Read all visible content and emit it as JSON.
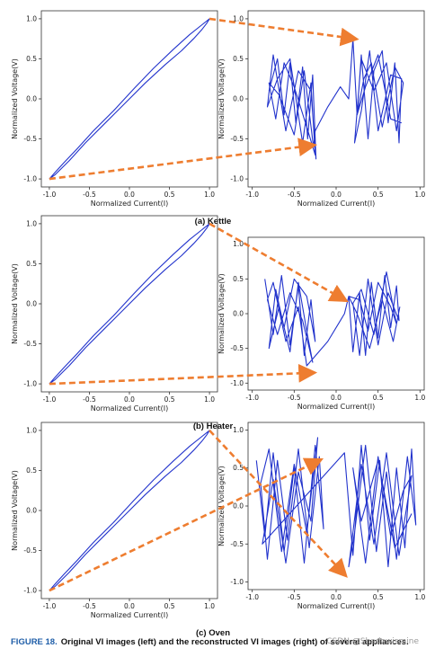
{
  "figure": {
    "label": "FIGURE 18.",
    "caption": "Original VI images (left) and the reconstructed VI images (right) of several appliances."
  },
  "watermark": "CSDN @Shadowismine",
  "colors": {
    "line": "#2233cc",
    "arrow": "#ee7d30",
    "axis": "#333333"
  },
  "chart_data": [
    {
      "type": "line",
      "panel": "kettle-left",
      "subcaption": "(a) Kettle",
      "xlabel": "Normalized Current(I)",
      "ylabel": "Normalized Voltage(V)",
      "xlim": [
        -1.1,
        1.1
      ],
      "ylim": [
        -1.1,
        1.1
      ],
      "xticks": [
        -1.0,
        -0.5,
        0.0,
        0.5,
        1.0
      ],
      "yticks": [
        -1.0,
        -0.5,
        0.0,
        0.5,
        1.0
      ],
      "series": [
        {
          "x": [
            -1.0,
            -0.93,
            -0.75,
            -0.55,
            -0.3,
            -0.05,
            0.2,
            0.45,
            0.65,
            0.8,
            0.9,
            0.97,
            1.0,
            0.9,
            0.75,
            0.55,
            0.3,
            0.05,
            -0.2,
            -0.45,
            -0.65,
            -0.82,
            -0.93,
            -1.0
          ],
          "y": [
            -1.0,
            -0.95,
            -0.77,
            -0.55,
            -0.3,
            -0.05,
            0.2,
            0.43,
            0.6,
            0.75,
            0.86,
            0.95,
            1.0,
            0.92,
            0.8,
            0.62,
            0.38,
            0.12,
            -0.15,
            -0.4,
            -0.62,
            -0.8,
            -0.92,
            -1.0
          ]
        }
      ]
    },
    {
      "type": "line",
      "panel": "kettle-right",
      "xlabel": "Normalized Current(I)",
      "ylabel": "Normalized Voltage(V)",
      "xlim": [
        -1.05,
        1.05
      ],
      "ylim": [
        -1.1,
        1.1
      ],
      "xticks": [
        -1.0,
        -0.5,
        0.0,
        0.5,
        1.0
      ],
      "yticks": [
        -1.0,
        -0.5,
        0.0,
        0.5,
        1.0
      ],
      "series": [
        {
          "x": [
            -0.8,
            -0.7,
            -0.62,
            -0.55,
            -0.48,
            -0.4,
            -0.34,
            -0.28,
            -0.24,
            -0.3,
            -0.45,
            -0.6,
            -0.75,
            -0.82,
            -0.7,
            -0.55,
            -0.4,
            -0.3,
            -0.25,
            -0.35,
            -0.5,
            -0.62,
            -0.72,
            -0.8,
            -0.68,
            -0.5,
            -0.38,
            -0.27,
            -0.25,
            -0.1,
            0.05,
            0.15,
            0.2,
            0.25,
            0.3,
            0.38,
            0.45,
            0.55,
            0.62,
            0.7,
            0.75,
            0.78,
            0.65,
            0.5,
            0.4,
            0.3,
            0.22,
            0.3,
            0.45,
            0.6,
            0.72,
            0.8,
            0.7,
            0.55,
            0.42,
            0.33,
            0.25,
            0.35,
            0.5,
            0.65,
            0.78
          ],
          "y": [
            0.1,
            0.5,
            -0.2,
            0.45,
            -0.3,
            0.4,
            -0.5,
            0.3,
            -0.75,
            0.1,
            0.35,
            -0.4,
            0.55,
            -0.1,
            0.25,
            0.5,
            -0.55,
            0.2,
            -0.7,
            -0.35,
            0.15,
            0.45,
            -0.25,
            0.2,
            0.05,
            -0.45,
            0.35,
            -0.6,
            -0.4,
            -0.1,
            0.15,
            0.0,
            0.75,
            -0.2,
            0.55,
            -0.5,
            0.35,
            0.6,
            -0.3,
            0.45,
            -0.55,
            0.25,
            0.3,
            -0.4,
            0.6,
            -0.15,
            -0.55,
            0.5,
            0.1,
            0.45,
            -0.4,
            0.2,
            0.4,
            -0.35,
            0.45,
            0.25,
            -0.2,
            0.15,
            0.55,
            -0.25,
            -0.3
          ]
        }
      ]
    },
    {
      "type": "line",
      "panel": "heater-left",
      "subcaption": "(b) Heater",
      "xlabel": "Normalized Current(I)",
      "ylabel": "Normalized Voltage(V)",
      "xlim": [
        -1.1,
        1.1
      ],
      "ylim": [
        -1.1,
        1.1
      ],
      "xticks": [
        -1.0,
        -0.5,
        0.0,
        0.5,
        1.0
      ],
      "yticks": [
        -1.0,
        -0.5,
        0.0,
        0.5,
        1.0
      ],
      "series": [
        {
          "x": [
            -1.0,
            -0.93,
            -0.75,
            -0.55,
            -0.3,
            -0.05,
            0.2,
            0.45,
            0.65,
            0.8,
            0.9,
            0.97,
            1.0,
            0.9,
            0.75,
            0.55,
            0.3,
            0.05,
            -0.2,
            -0.45,
            -0.65,
            -0.82,
            -0.93,
            -1.0
          ],
          "y": [
            -1.0,
            -0.95,
            -0.77,
            -0.55,
            -0.3,
            -0.05,
            0.2,
            0.43,
            0.6,
            0.75,
            0.86,
            0.95,
            1.0,
            0.92,
            0.8,
            0.62,
            0.38,
            0.12,
            -0.15,
            -0.4,
            -0.62,
            -0.8,
            -0.92,
            -1.0
          ]
        }
      ]
    },
    {
      "type": "line",
      "panel": "heater-right",
      "xlabel": "Normalized Current(I)",
      "ylabel": "Normalized Voltage(V)",
      "xlim": [
        -1.05,
        1.05
      ],
      "ylim": [
        -1.1,
        1.1
      ],
      "xticks": [
        -1.0,
        -0.5,
        0.0,
        0.5,
        1.0
      ],
      "yticks": [
        -1.0,
        -0.5,
        0.0,
        0.5,
        1.0
      ],
      "series": [
        {
          "x": [
            -0.85,
            -0.75,
            -0.65,
            -0.55,
            -0.45,
            -0.38,
            -0.3,
            -0.25,
            -0.35,
            -0.5,
            -0.62,
            -0.72,
            -0.8,
            -0.68,
            -0.55,
            -0.45,
            -0.35,
            -0.28,
            -0.4,
            -0.55,
            -0.7,
            -0.82,
            -0.75,
            -0.6,
            -0.45,
            -0.35,
            -0.1,
            0.05,
            0.1,
            0.15,
            0.2,
            0.28,
            0.35,
            0.42,
            0.5,
            0.58,
            0.65,
            0.72,
            0.75,
            0.62,
            0.5,
            0.38,
            0.28,
            0.2,
            0.3,
            0.45,
            0.6,
            0.72,
            0.65,
            0.5,
            0.38,
            0.28,
            0.15,
            0.25,
            0.4,
            0.55,
            0.68,
            0.76
          ],
          "y": [
            0.5,
            -0.3,
            0.55,
            -0.45,
            0.4,
            -0.6,
            0.2,
            -0.4,
            0.25,
            0.5,
            -0.2,
            0.35,
            -0.5,
            0.1,
            -0.55,
            0.45,
            -0.25,
            -0.7,
            -0.1,
            0.3,
            -0.3,
            0.2,
            0.45,
            -0.4,
            0.1,
            -0.75,
            -0.4,
            -0.1,
            0.0,
            0.25,
            -0.55,
            0.3,
            -0.6,
            0.45,
            -0.35,
            0.55,
            -0.2,
            0.4,
            -0.1,
            0.3,
            -0.45,
            0.5,
            -0.6,
            0.15,
            0.35,
            -0.3,
            0.6,
            -0.15,
            0.1,
            0.45,
            -0.25,
            0.2,
            0.25,
            0.0,
            -0.5,
            0.2,
            -0.4,
            0.1
          ]
        }
      ]
    },
    {
      "type": "line",
      "panel": "oven-left",
      "subcaption": "(c) Oven",
      "xlabel": "Normalized Current(I)",
      "ylabel": "Normalized Voltage(V)",
      "xlim": [
        -1.1,
        1.1
      ],
      "ylim": [
        -1.1,
        1.1
      ],
      "xticks": [
        -1.0,
        -0.5,
        0.0,
        0.5,
        1.0
      ],
      "yticks": [
        -1.0,
        -0.5,
        0.0,
        0.5,
        1.0
      ],
      "series": [
        {
          "x": [
            -1.0,
            -0.93,
            -0.75,
            -0.55,
            -0.3,
            -0.05,
            0.2,
            0.45,
            0.65,
            0.8,
            0.9,
            0.97,
            1.0,
            0.9,
            0.75,
            0.55,
            0.3,
            0.05,
            -0.2,
            -0.45,
            -0.65,
            -0.82,
            -0.93,
            -1.0
          ],
          "y": [
            -1.0,
            -0.95,
            -0.77,
            -0.55,
            -0.3,
            -0.05,
            0.2,
            0.43,
            0.6,
            0.75,
            0.86,
            0.95,
            1.0,
            0.92,
            0.8,
            0.62,
            0.38,
            0.12,
            -0.15,
            -0.4,
            -0.62,
            -0.8,
            -0.92,
            -1.0
          ]
        }
      ]
    },
    {
      "type": "line",
      "panel": "oven-right",
      "xlabel": "Normalized Current(I)",
      "ylabel": "Normalized Voltage(V)",
      "xlim": [
        -1.05,
        1.05
      ],
      "ylim": [
        -1.1,
        1.1
      ],
      "xticks": [
        -1.0,
        -0.5,
        0.0,
        0.5,
        1.0
      ],
      "yticks": [
        -1.0,
        -0.5,
        0.0,
        0.5,
        1.0
      ],
      "series": [
        {
          "x": [
            -0.95,
            -0.85,
            -0.75,
            -0.62,
            -0.5,
            -0.38,
            -0.25,
            -0.15,
            -0.2,
            -0.32,
            -0.45,
            -0.58,
            -0.7,
            -0.82,
            -0.9,
            -0.8,
            -0.65,
            -0.5,
            -0.35,
            -0.22,
            -0.3,
            -0.45,
            -0.6,
            -0.75,
            -0.88,
            0.1,
            0.2,
            0.3,
            0.4,
            0.52,
            0.62,
            0.72,
            0.82,
            0.9,
            0.95,
            0.85,
            0.72,
            0.6,
            0.48,
            0.35,
            0.22,
            0.15,
            0.3,
            0.45,
            0.6,
            0.75,
            0.9,
            0.8,
            0.65,
            0.5,
            0.35,
            0.2,
            0.3,
            0.5,
            0.7,
            0.9
          ],
          "y": [
            0.6,
            -0.4,
            0.7,
            -0.6,
            0.5,
            -0.75,
            0.8,
            -0.3,
            0.65,
            -0.55,
            0.75,
            -0.45,
            0.6,
            -0.7,
            0.3,
            0.75,
            -0.6,
            0.55,
            -0.35,
            0.9,
            -0.2,
            0.45,
            -0.75,
            0.35,
            -0.5,
            0.7,
            -0.65,
            0.8,
            -0.45,
            0.6,
            -0.8,
            0.5,
            -0.55,
            0.75,
            -0.25,
            0.65,
            -0.7,
            0.45,
            -0.6,
            0.8,
            -0.35,
            -0.8,
            0.55,
            -0.5,
            0.7,
            -0.65,
            0.4,
            0.2,
            -0.4,
            0.65,
            -0.75,
            0.5,
            -0.2,
            0.6,
            -0.55,
            -0.1
          ]
        }
      ]
    }
  ]
}
